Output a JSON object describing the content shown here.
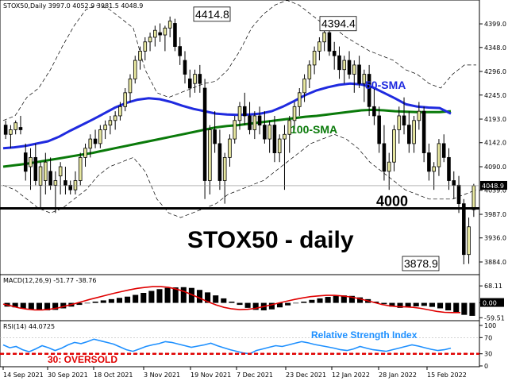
{
  "chart_data": [
    {
      "type": "candlestick",
      "header": "STOX50,Daily  3997.0 4052.9 3981.5 4048.9",
      "title": "STOX50 - daily",
      "last_price": "4048.9",
      "y_ticks": [
        "4399.0",
        "4348.0",
        "4296.0",
        "4245.0",
        "4193.0",
        "4142.0",
        "4090.0",
        "4039.0",
        "3987.0",
        "3936.0",
        "3884.0"
      ],
      "ylim": [
        3860,
        4430
      ],
      "key_level": {
        "value": 4000,
        "label": "4000"
      },
      "annotations": [
        {
          "text": "4414.8",
          "value": 4414.8
        },
        {
          "text": "4394.4",
          "value": 4394.4
        },
        {
          "text": "3878.9",
          "value": 3878.9
        }
      ],
      "series": [
        {
          "name": "50-SMA",
          "color": "#1f2adf"
        },
        {
          "name": "100-SMA",
          "color": "#0a7a0a"
        }
      ],
      "sma50": [
        4130,
        4132,
        4135,
        4140,
        4145,
        4155,
        4168,
        4180,
        4192,
        4205,
        4218,
        4228,
        4235,
        4238,
        4236,
        4230,
        4222,
        4215,
        4210,
        4205,
        4203,
        4202,
        4203,
        4205,
        4210,
        4220,
        4232,
        4245,
        4255,
        4262,
        4267,
        4270,
        4268,
        4262,
        4250,
        4238,
        4225,
        4220,
        4218,
        4217,
        4205
      ],
      "sma100": [
        4090,
        4093,
        4096,
        4100,
        4104,
        4108,
        4112,
        4116,
        4120,
        4125,
        4130,
        4135,
        4140,
        4145,
        4150,
        4155,
        4160,
        4165,
        4170,
        4175,
        4178,
        4180,
        4183,
        4186,
        4189,
        4192,
        4195,
        4198,
        4200,
        4203,
        4206,
        4209,
        4212,
        4213,
        4212,
        4210,
        4209,
        4208,
        4208,
        4208,
        4210
      ],
      "band_upper": [
        4190,
        4200,
        4240,
        4260,
        4300,
        4350,
        4395,
        4430,
        4440,
        4430,
        4410,
        4390,
        4300,
        4250,
        4240,
        4250,
        4260,
        4270,
        4275,
        4300,
        4340,
        4390,
        4420,
        4440,
        4450,
        4440,
        4420,
        4400,
        4390,
        4370,
        4355,
        4340,
        4330,
        4320,
        4300,
        4290,
        4270,
        4260,
        4290,
        4310,
        4310
      ],
      "band_lower": [
        4050,
        4040,
        4020,
        4000,
        3990,
        4000,
        4020,
        4040,
        4070,
        4090,
        4100,
        4110,
        4080,
        4020,
        3990,
        3980,
        3990,
        4000,
        4010,
        4030,
        4040,
        4050,
        4060,
        4080,
        4100,
        4120,
        4140,
        4150,
        4160,
        4150,
        4130,
        4100,
        4080,
        4060,
        4040,
        4030,
        4020,
        4020,
        4020,
        4030,
        4040
      ],
      "candles_ohlc": [
        [
          4180,
          4190,
          4150,
          4160
        ],
        [
          4160,
          4180,
          4130,
          4170
        ],
        [
          4170,
          4190,
          4160,
          4185
        ],
        [
          4175,
          4200,
          4160,
          4170
        ],
        [
          4120,
          4140,
          4060,
          4080
        ],
        [
          4090,
          4130,
          4040,
          4110
        ],
        [
          4110,
          4140,
          4050,
          4060
        ],
        [
          4050,
          4100,
          4000,
          4090
        ],
        [
          4060,
          4120,
          4030,
          4100
        ],
        [
          4080,
          4110,
          4040,
          4050
        ],
        [
          4050,
          4080,
          3990,
          4060
        ],
        [
          4070,
          4100,
          4030,
          4090
        ],
        [
          4060,
          4090,
          4030,
          4050
        ],
        [
          4050,
          4060,
          4030,
          4040
        ],
        [
          4040,
          4080,
          4030,
          4060
        ],
        [
          4060,
          4120,
          4050,
          4110
        ],
        [
          4110,
          4140,
          4090,
          4130
        ],
        [
          4130,
          4160,
          4110,
          4150
        ],
        [
          4150,
          4170,
          4130,
          4140
        ],
        [
          4140,
          4180,
          4130,
          4170
        ],
        [
          4170,
          4190,
          4150,
          4180
        ],
        [
          4180,
          4200,
          4160,
          4190
        ],
        [
          4190,
          4210,
          4170,
          4200
        ],
        [
          4200,
          4230,
          4190,
          4220
        ],
        [
          4220,
          4260,
          4210,
          4250
        ],
        [
          4250,
          4290,
          4230,
          4280
        ],
        [
          4280,
          4330,
          4270,
          4320
        ],
        [
          4320,
          4350,
          4300,
          4340
        ],
        [
          4340,
          4370,
          4320,
          4360
        ],
        [
          4360,
          4380,
          4340,
          4370
        ],
        [
          4370,
          4395,
          4350,
          4385
        ],
        [
          4380,
          4400,
          4360,
          4375
        ],
        [
          4375,
          4395,
          4340,
          4390
        ],
        [
          4390,
          4414.8,
          4370,
          4405
        ],
        [
          4400,
          4410,
          4340,
          4350
        ],
        [
          4350,
          4370,
          4310,
          4330
        ],
        [
          4320,
          4340,
          4270,
          4290
        ],
        [
          4280,
          4300,
          4240,
          4260
        ],
        [
          4270,
          4300,
          4250,
          4290
        ],
        [
          4290,
          4310,
          4250,
          4270
        ],
        [
          4260,
          4280,
          4020,
          4060
        ],
        [
          4060,
          4180,
          4030,
          4170
        ],
        [
          4170,
          4210,
          4120,
          4140
        ],
        [
          4140,
          4170,
          4040,
          4060
        ],
        [
          4060,
          4120,
          4010,
          4110
        ],
        [
          4110,
          4160,
          4090,
          4150
        ],
        [
          4150,
          4200,
          4140,
          4190
        ],
        [
          4190,
          4230,
          4170,
          4220
        ],
        [
          4220,
          4250,
          4180,
          4200
        ],
        [
          4200,
          4230,
          4160,
          4170
        ],
        [
          4170,
          4210,
          4150,
          4200
        ],
        [
          4200,
          4220,
          4160,
          4180
        ],
        [
          4180,
          4210,
          4140,
          4150
        ],
        [
          4150,
          4190,
          4120,
          4180
        ],
        [
          4180,
          4200,
          4100,
          4120
        ],
        [
          4120,
          4160,
          4100,
          4150
        ],
        [
          4150,
          4180,
          4040,
          4160
        ],
        [
          4160,
          4200,
          4120,
          4190
        ],
        [
          4190,
          4230,
          4170,
          4220
        ],
        [
          4220,
          4260,
          4200,
          4250
        ],
        [
          4250,
          4290,
          4230,
          4280
        ],
        [
          4280,
          4320,
          4260,
          4310
        ],
        [
          4310,
          4350,
          4290,
          4340
        ],
        [
          4340,
          4370,
          4320,
          4360
        ],
        [
          4360,
          4394.4,
          4340,
          4380
        ],
        [
          4380,
          4390,
          4330,
          4340
        ],
        [
          4340,
          4360,
          4300,
          4330
        ],
        [
          4330,
          4350,
          4280,
          4300
        ],
        [
          4300,
          4330,
          4270,
          4320
        ],
        [
          4320,
          4340,
          4280,
          4290
        ],
        [
          4290,
          4320,
          4250,
          4310
        ],
        [
          4310,
          4330,
          4260,
          4270
        ],
        [
          4270,
          4300,
          4230,
          4290
        ],
        [
          4290,
          4310,
          4200,
          4220
        ],
        [
          4220,
          4260,
          4180,
          4200
        ],
        [
          4200,
          4220,
          4120,
          4140
        ],
        [
          4140,
          4180,
          4060,
          4080
        ],
        [
          4080,
          4120,
          4040,
          4100
        ],
        [
          4100,
          4180,
          4080,
          4170
        ],
        [
          4170,
          4220,
          4140,
          4200
        ],
        [
          4200,
          4240,
          4160,
          4180
        ],
        [
          4180,
          4210,
          4120,
          4140
        ],
        [
          4140,
          4200,
          4120,
          4190
        ],
        [
          4190,
          4230,
          4170,
          4210
        ],
        [
          4210,
          4220,
          4100,
          4120
        ],
        [
          4120,
          4140,
          4060,
          4080
        ],
        [
          4080,
          4100,
          4040,
          4090
        ],
        [
          4090,
          4150,
          4070,
          4140
        ],
        [
          4140,
          4160,
          4100,
          4110
        ],
        [
          4110,
          4130,
          4040,
          4060
        ],
        [
          4060,
          4080,
          4020,
          4050
        ],
        [
          4050,
          4070,
          3990,
          4010
        ],
        [
          4010,
          4020,
          3878.9,
          3900
        ],
        [
          3900,
          3980,
          3880,
          3960
        ],
        [
          3997,
          4052.9,
          3981.5,
          4048.9
        ]
      ],
      "x_ticks": [
        "14 Sep 2021",
        "30 Sep 2021",
        "18 Oct 2021",
        "3 Nov 2021",
        "19 Nov 2021",
        "7 Dec 2021",
        "23 Dec 2021",
        "12 Jan 2022",
        "28 Jan 2022",
        "15 Feb 2022"
      ]
    },
    {
      "type": "macd",
      "header": "MACD(12,26,9) -51.77 -38.76",
      "y_ticks": [
        "68.11",
        "0.00",
        "-59.51"
      ],
      "ylim": [
        -65,
        75
      ],
      "histogram": [
        -15,
        -18,
        -22,
        -25,
        -28,
        -30,
        -28,
        -22,
        -15,
        -8,
        -2,
        5,
        10,
        15,
        20,
        25,
        32,
        40,
        48,
        55,
        60,
        62,
        63,
        60,
        52,
        42,
        30,
        18,
        5,
        -8,
        -20,
        -28,
        -30,
        -26,
        -18,
        -10,
        -2,
        5,
        12,
        18,
        24,
        28,
        30,
        28,
        22,
        15,
        5,
        -5,
        -15,
        -20,
        -18,
        -14,
        -12,
        -16,
        -22,
        -30,
        -38,
        -48,
        -52
      ],
      "signal": [
        -5,
        -12,
        -20,
        -25,
        -28,
        -28,
        -25,
        -20,
        -12,
        -4,
        5,
        14,
        22,
        30,
        38,
        45,
        52,
        58,
        62,
        65,
        65,
        62,
        55,
        45,
        32,
        18,
        4,
        -8,
        -18,
        -24,
        -27,
        -26,
        -22,
        -15,
        -8,
        0,
        7,
        14,
        20,
        25,
        28,
        30,
        30,
        28,
        24,
        18,
        10,
        2,
        -6,
        -12,
        -15,
        -16,
        -18,
        -22,
        -28,
        -34,
        -38,
        -39,
        -39
      ]
    },
    {
      "type": "rsi",
      "header": "RSI(14) 44.0725",
      "title": "Relative Strength Index",
      "y_ticks": [
        "100",
        "70",
        "30",
        "0"
      ],
      "ylim": [
        0,
        100
      ],
      "oversold": {
        "value": 30,
        "label": "30: OVERSOLD"
      },
      "values": [
        52,
        45,
        48,
        40,
        35,
        42,
        50,
        45,
        38,
        44,
        52,
        58,
        55,
        60,
        66,
        62,
        58,
        54,
        47,
        40,
        36,
        42,
        48,
        52,
        55,
        60,
        58,
        54,
        50,
        46,
        49,
        52,
        56,
        50,
        45,
        40,
        36,
        32,
        30,
        38,
        42,
        46,
        50,
        48,
        52,
        56,
        60,
        57,
        53,
        50,
        47,
        44,
        40,
        38,
        42,
        48,
        44,
        40,
        38,
        36,
        40,
        44,
        48,
        52,
        49,
        45,
        41,
        38,
        40,
        44
      ]
    }
  ]
}
